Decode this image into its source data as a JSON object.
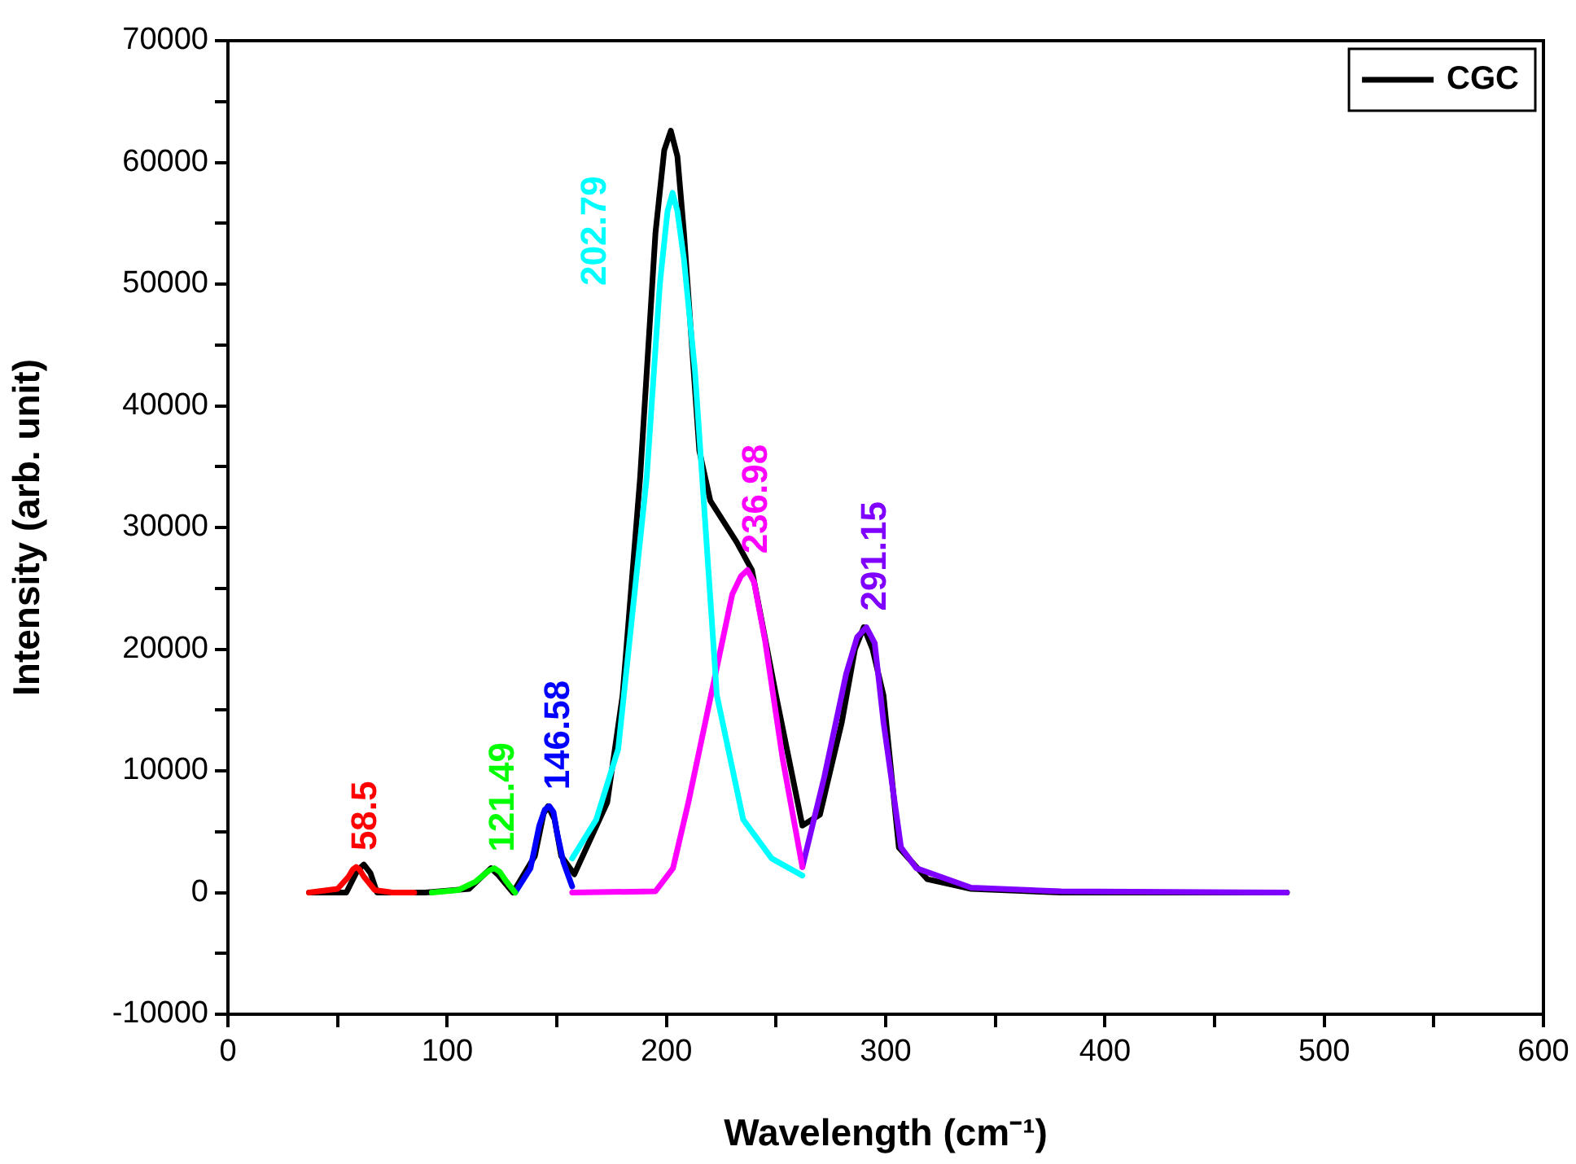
{
  "chart_data": {
    "type": "line",
    "xlabel": "Wavelength (cm⁻¹)",
    "ylabel": "Intensity (arb. unit)",
    "xlim": [
      0,
      600
    ],
    "xticks": [
      0,
      {
        "value": 50,
        "label": null
      },
      100,
      {
        "value": 150,
        "label": null
      },
      200,
      {
        "value": 250,
        "label": null
      },
      300,
      {
        "value": 350,
        "label": null
      },
      400,
      {
        "value": 450,
        "label": null
      },
      500,
      {
        "value": 550,
        "label": null
      },
      600
    ],
    "ylim": [
      -10000,
      70000
    ],
    "yticks": [
      -10000,
      {
        "value": -5000,
        "label": null
      },
      0,
      {
        "value": 5000,
        "label": null
      },
      10000,
      {
        "value": 15000,
        "label": null
      },
      20000,
      {
        "value": 25000,
        "label": null
      },
      30000,
      {
        "value": 35000,
        "label": null
      },
      40000,
      {
        "value": 45000,
        "label": null
      },
      50000,
      {
        "value": 55000,
        "label": null
      },
      60000,
      {
        "value": 65000,
        "label": null
      },
      70000
    ],
    "grid": false,
    "legend": "top right",
    "marker": "none",
    "line_style": "solid",
    "series": [
      {
        "name": "CGC",
        "color": "#000000",
        "x": [
          37,
          54,
          59,
          62,
          65,
          68,
          90,
          110,
          117,
          120,
          123,
          130,
          140,
          144,
          146,
          149,
          152,
          158,
          173,
          180,
          188,
          195,
          199,
          202,
          205,
          208,
          215,
          220,
          232,
          239,
          250,
          262,
          270,
          280,
          286,
          290,
          294,
          299,
          306,
          319,
          339,
          380,
          483
        ],
        "values": [
          0,
          0,
          1800,
          2300,
          1600,
          0,
          0,
          300,
          1500,
          2000,
          1500,
          0,
          3000,
          6500,
          7100,
          6000,
          3000,
          1500,
          7400,
          16200,
          34100,
          54200,
          61000,
          62600,
          60500,
          54200,
          36300,
          32200,
          28800,
          26500,
          16200,
          5500,
          6400,
          14000,
          20000,
          21800,
          20000,
          16200,
          3700,
          1100,
          300,
          0,
          0
        ]
      },
      {
        "color": "#ff0000",
        "x": [
          37,
          50,
          55,
          57,
          58.5,
          60,
          62,
          67,
          75,
          85
        ],
        "values": [
          0,
          300,
          1300,
          1900,
          2100,
          1900,
          1300,
          200,
          0,
          0
        ]
      },
      {
        "color": "#00ff00",
        "x": [
          93,
          105,
          113,
          119,
          121.5,
          124,
          127,
          131
        ],
        "values": [
          0,
          200,
          900,
          1800,
          2000,
          1700,
          900,
          0
        ]
      },
      {
        "color": "#0000ff",
        "x": [
          131,
          138,
          142,
          144.5,
          146.6,
          148.5,
          150,
          153,
          157
        ],
        "values": [
          0,
          2000,
          5500,
          6800,
          7100,
          6600,
          5000,
          2500,
          500
        ]
      },
      {
        "color": "#00ffff",
        "x": [
          157,
          168,
          178,
          191,
          197,
          200.5,
          202.8,
          205,
          208,
          213,
          223,
          235,
          248,
          262
        ],
        "values": [
          2800,
          6000,
          11800,
          34100,
          50000,
          56000,
          57500,
          56000,
          52000,
          42900,
          16200,
          6000,
          2800,
          1400
        ]
      },
      {
        "color": "#ff00ff",
        "x": [
          157,
          195,
          203,
          210,
          223,
          230,
          234,
          237,
          240,
          245,
          253,
          262
        ],
        "values": [
          0,
          100,
          2000,
          7400,
          18500,
          24500,
          26000,
          26500,
          25500,
          20700,
          11000,
          2100
        ]
      },
      {
        "color": "#8000ff",
        "x": [
          262,
          272,
          282,
          287,
          291.2,
          295,
          299,
          307,
          314,
          339,
          380,
          483
        ],
        "values": [
          2100,
          9500,
          18000,
          21000,
          21800,
          20500,
          14000,
          3700,
          2000,
          400,
          100,
          0
        ]
      }
    ],
    "annotations": [
      {
        "text": "58.5",
        "x": 58.5,
        "y": 2100
      },
      {
        "text": "121.49",
        "x": 121.5,
        "y": 2000
      },
      {
        "text": "146.58",
        "x": 146.6,
        "y": 7100
      },
      {
        "text": "202.79",
        "x": 202.8,
        "y": 57500
      },
      {
        "text": "236.98",
        "x": 237,
        "y": 26500
      },
      {
        "text": "291.15",
        "x": 291.2,
        "y": 21800
      }
    ]
  }
}
